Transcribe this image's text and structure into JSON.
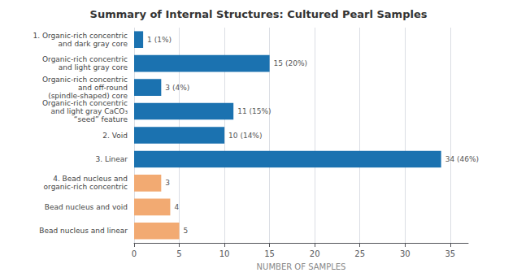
{
  "chart_data": {
    "type": "bar",
    "orientation": "horizontal",
    "title": "Summary of Internal Structures: Cultured Pearl Samples",
    "xlabel": "NUMBER OF SAMPLES",
    "categories": [
      "1. Organic-rich concentric\nand dark gray core",
      "Organic-rich concentric\nand light gray core",
      "Organic-rich concentric\nand off-round\n(spindle-shaped) core",
      "Organic-rich concentric\nand light gray CaCO₃\n“seed” feature",
      "2. Void",
      "3. Linear",
      "4. Bead nucleus and\norganic-rich concentric",
      "Bead nucleus and void",
      "Bead nucleus and linear"
    ],
    "values": [
      1,
      15,
      3,
      11,
      10,
      34,
      3,
      4,
      5
    ],
    "value_labels": [
      "1 (1%)",
      "15 (20%)",
      "3 (4%)",
      "11 (15%)",
      "10 (14%)",
      "34 (46%)",
      "3",
      "4",
      "5"
    ],
    "data_labels": true,
    "colors": [
      "#1b72b0",
      "#1b72b0",
      "#1b72b0",
      "#1b72b0",
      "#1b72b0",
      "#1b72b0",
      "#f2aa72",
      "#f2aa72",
      "#f2aa72"
    ],
    "xlim": [
      0,
      37
    ],
    "xticks": [
      0,
      5,
      10,
      15,
      20,
      25,
      30,
      35
    ],
    "grid": true
  }
}
